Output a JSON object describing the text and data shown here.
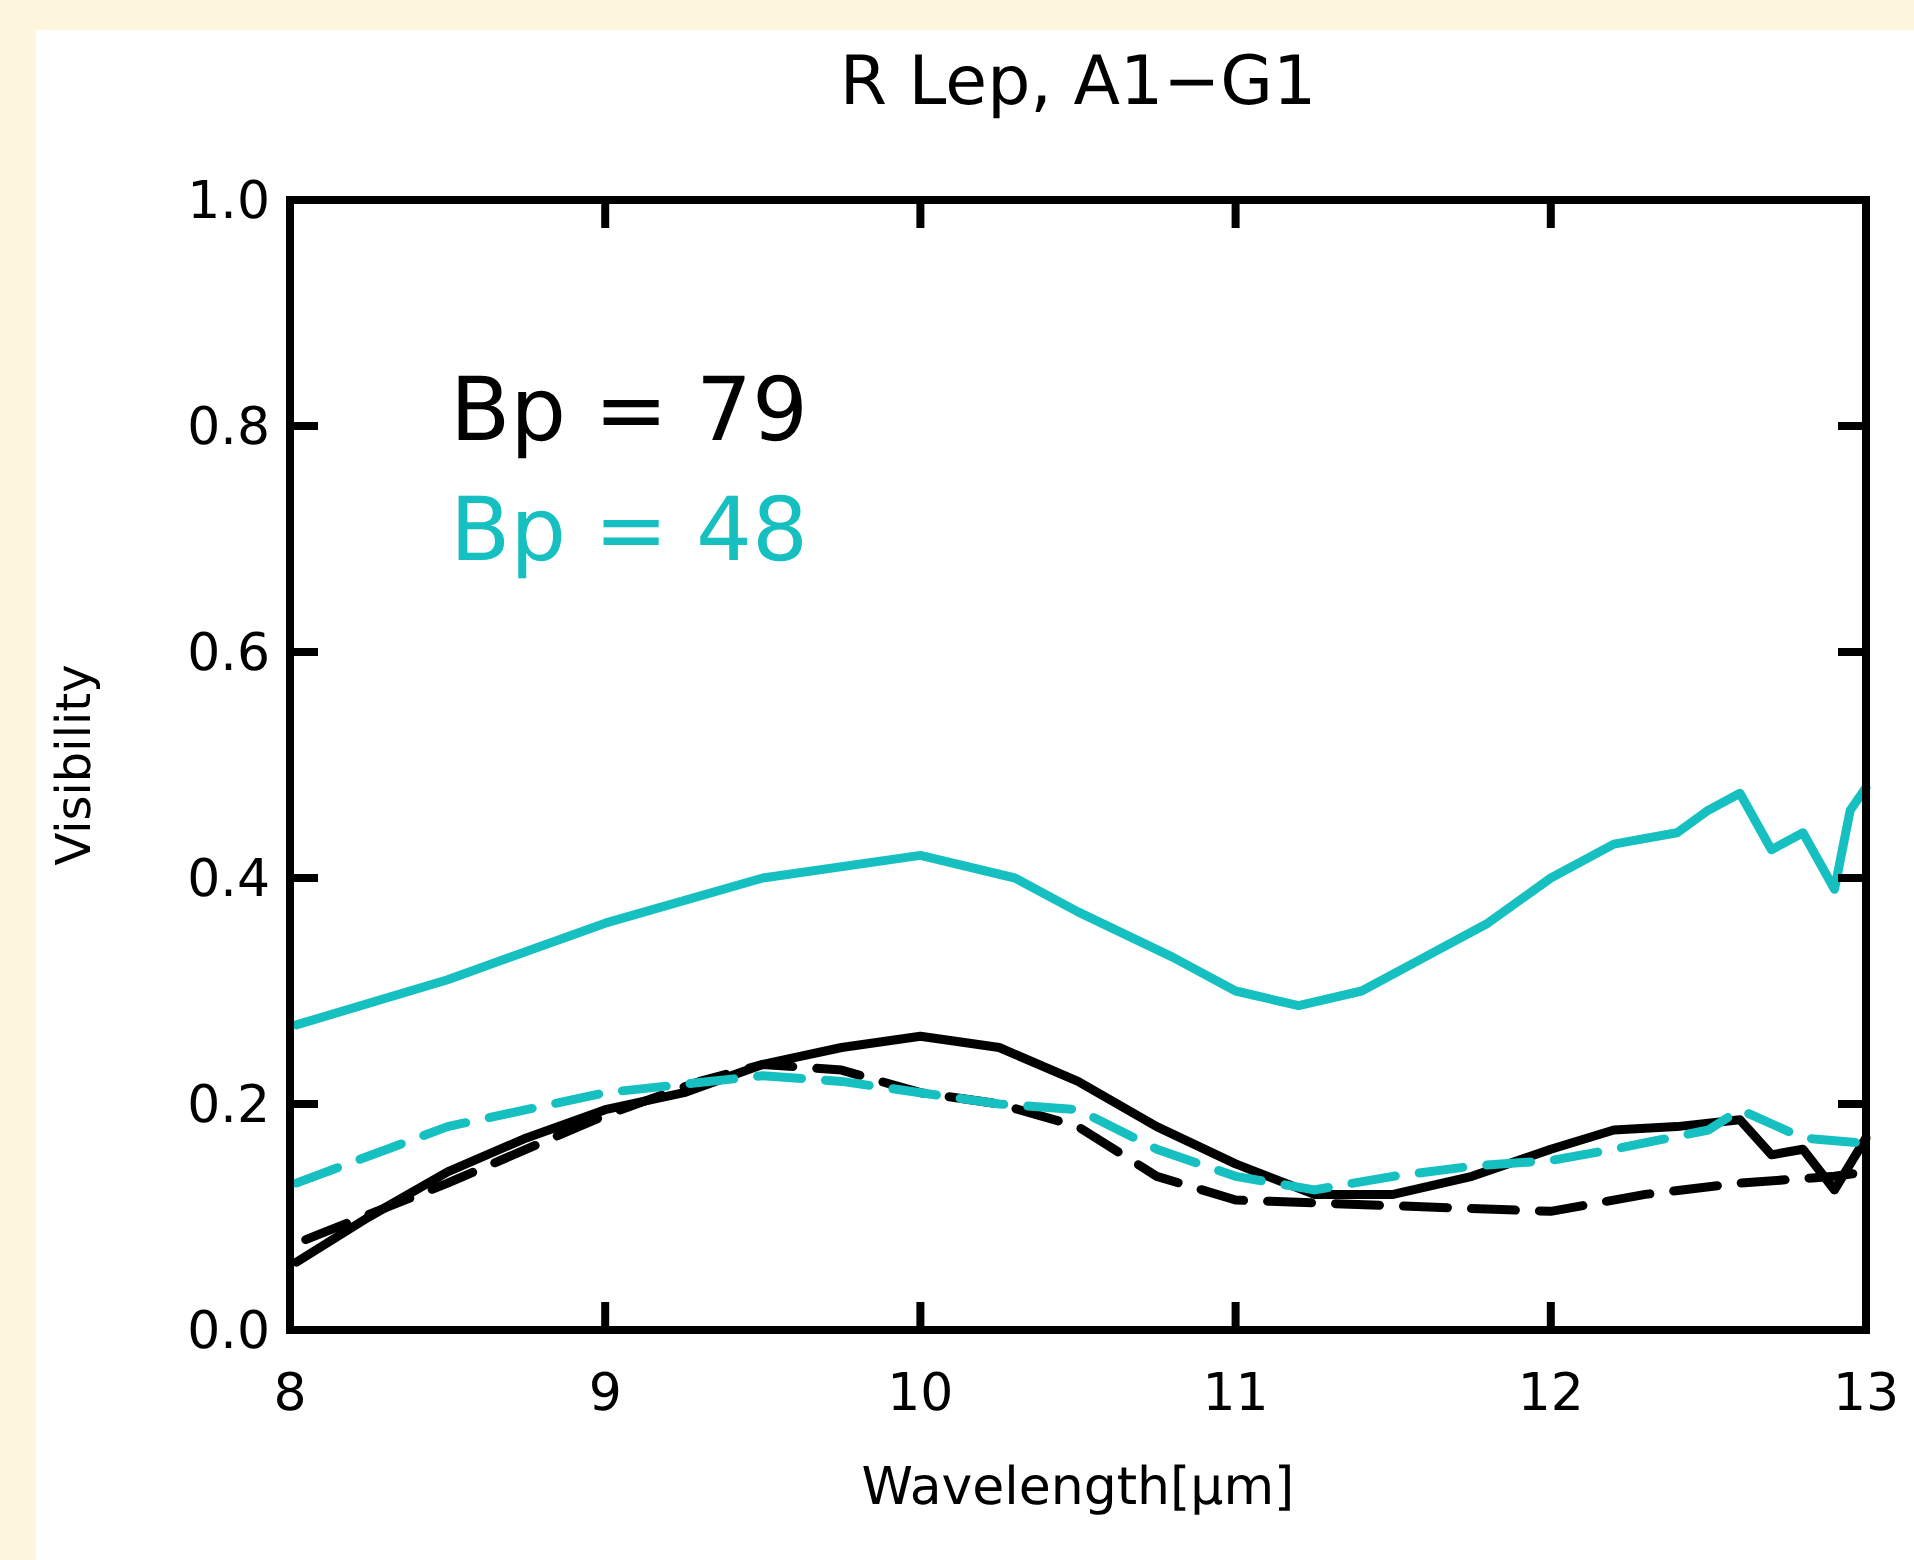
{
  "chart_data": {
    "type": "line",
    "title": "R Lep, A1−G1",
    "xlabel": "Wavelength[μm]",
    "ylabel": "Visibility",
    "xlim": [
      8,
      13
    ],
    "ylim": [
      0,
      1
    ],
    "xticks": [
      8,
      9,
      10,
      11,
      12,
      13
    ],
    "yticks": [
      {
        "value": 0,
        "label": "0.0"
      },
      {
        "value": 0.2,
        "label": "0.2"
      },
      {
        "value": 0.4,
        "label": "0.4"
      },
      {
        "value": 0.6,
        "label": "0.6"
      },
      {
        "value": 0.8,
        "label": "0.8"
      },
      {
        "value": 1,
        "label": "1.0"
      }
    ],
    "grid": false,
    "legend": "top left",
    "line_style": "solid",
    "series": [
      {
        "name": "Bp = 79",
        "color": "#000000",
        "x": [
          8.02,
          8.25,
          8.5,
          8.75,
          9,
          9.25,
          9.5,
          9.75,
          10,
          10.25,
          10.5,
          10.75,
          11,
          11.25,
          11.5,
          11.75,
          12,
          12.2,
          12.4,
          12.6,
          12.7,
          12.8,
          12.9,
          13
        ],
        "values": [
          0.06,
          0.1,
          0.14,
          0.17,
          0.195,
          0.21,
          0.235,
          0.25,
          0.26,
          0.25,
          0.22,
          0.18,
          0.147,
          0.12,
          0.12,
          0.136,
          0.16,
          0.177,
          0.18,
          0.186,
          0.155,
          0.16,
          0.124,
          0.17
        ]
      },
      {
        "name": "Bp = 48",
        "color": "#17c0c0",
        "x": [
          8.02,
          8.5,
          9,
          9.5,
          10,
          10.3,
          10.5,
          10.8,
          11,
          11.2,
          11.4,
          11.6,
          11.8,
          12,
          12.2,
          12.4,
          12.5,
          12.6,
          12.7,
          12.8,
          12.9,
          12.95,
          13
        ],
        "values": [
          0.27,
          0.31,
          0.36,
          0.4,
          0.42,
          0.4,
          0.37,
          0.33,
          0.3,
          0.287,
          0.3,
          0.33,
          0.36,
          0.4,
          0.43,
          0.44,
          0.46,
          0.475,
          0.425,
          0.44,
          0.39,
          0.46,
          0.48
        ]
      },
      {
        "color": "#000000",
        "line_style": "dashed",
        "x": [
          8.05,
          8.5,
          9,
          9.3,
          9.5,
          9.75,
          10,
          10.25,
          10.5,
          10.75,
          11,
          11.5,
          12,
          12.3,
          12.6,
          12.9,
          13
        ],
        "values": [
          0.08,
          0.13,
          0.19,
          0.22,
          0.235,
          0.23,
          0.21,
          0.2,
          0.18,
          0.136,
          0.115,
          0.11,
          0.105,
          0.12,
          0.13,
          0.136,
          0.14
        ]
      },
      {
        "color": "#17c0c0",
        "line_style": "dashed",
        "x": [
          8.02,
          8.5,
          9,
          9.5,
          9.75,
          10,
          10.25,
          10.5,
          10.75,
          11,
          11.25,
          11.5,
          11.75,
          12,
          12.2,
          12.5,
          12.6,
          12.8,
          13
        ],
        "values": [
          0.13,
          0.18,
          0.21,
          0.225,
          0.22,
          0.21,
          0.2,
          0.195,
          0.16,
          0.136,
          0.124,
          0.136,
          0.145,
          0.15,
          0.16,
          0.177,
          0.195,
          0.17,
          0.165
        ]
      }
    ]
  }
}
